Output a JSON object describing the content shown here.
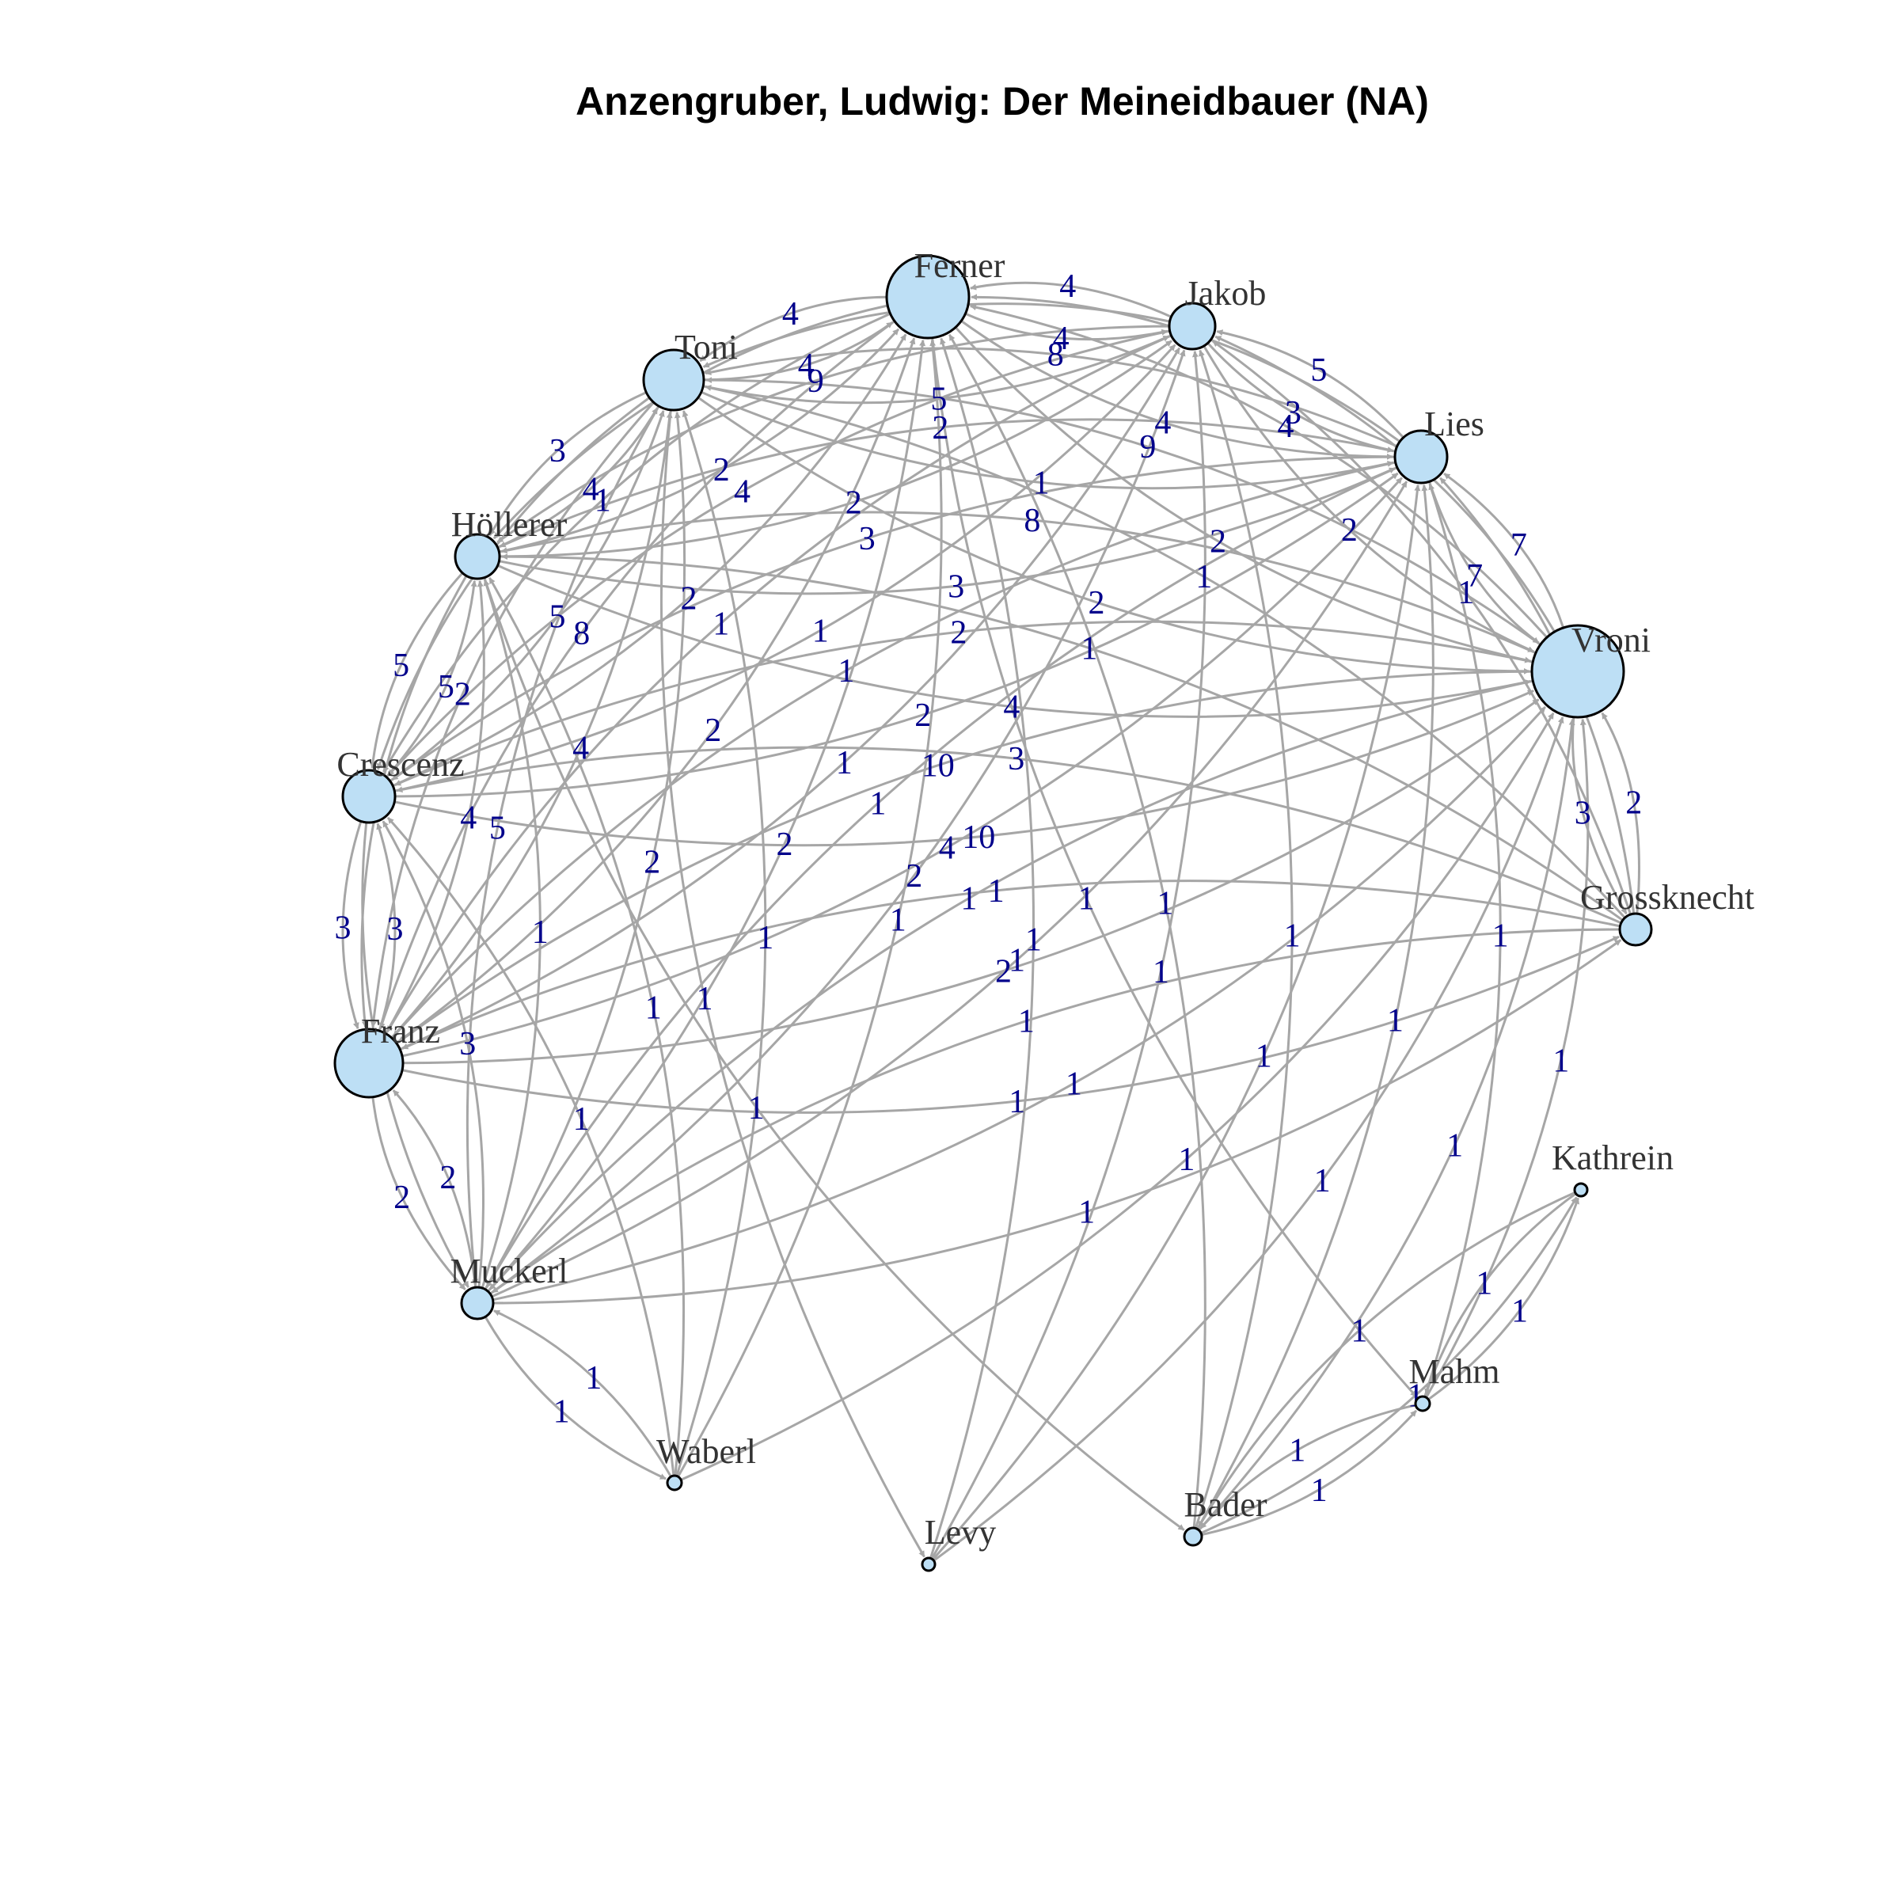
{
  "title": "Anzengruber, Ludwig: Der Meineidbauer (NA)",
  "colors": {
    "node_fill": "#bddff5",
    "node_stroke": "#000000",
    "edge": "#a6a6a6",
    "edge_label": "#00008b",
    "node_label": "#333333"
  },
  "nodes": [
    {
      "id": "Ferner",
      "label": "Ferner"
    },
    {
      "id": "Jakob",
      "label": "Jakob"
    },
    {
      "id": "Toni",
      "label": "Toni"
    },
    {
      "id": "Lies",
      "label": "Lies"
    },
    {
      "id": "Hoellerer",
      "label": "Höllerer"
    },
    {
      "id": "Vroni",
      "label": "Vroni"
    },
    {
      "id": "Crescenz",
      "label": "Crescenz"
    },
    {
      "id": "Grossknecht",
      "label": "Grossknecht"
    },
    {
      "id": "Franz",
      "label": "Franz"
    },
    {
      "id": "Kathrein",
      "label": "Kathrein"
    },
    {
      "id": "Muckerl",
      "label": "Muckerl"
    },
    {
      "id": "Mahm",
      "label": "Mahm"
    },
    {
      "id": "Waberl",
      "label": "Waberl"
    },
    {
      "id": "Bader",
      "label": "Bader"
    },
    {
      "id": "Levy",
      "label": "Levy"
    }
  ],
  "edges": [
    {
      "source": "Ferner",
      "target": "Jakob",
      "weight": "4"
    },
    {
      "source": "Jakob",
      "target": "Ferner",
      "weight": "4"
    },
    {
      "source": "Toni",
      "target": "Ferner",
      "weight": "4"
    },
    {
      "source": "Ferner",
      "target": "Toni",
      "weight": "4"
    },
    {
      "source": "Ferner",
      "target": "Lies",
      "weight": "4"
    },
    {
      "source": "Jakob",
      "target": "Lies",
      "weight": "3"
    },
    {
      "source": "Lies",
      "target": "Jakob",
      "weight": "5"
    },
    {
      "source": "Jakob",
      "target": "Vroni",
      "weight": "2"
    },
    {
      "source": "Lies",
      "target": "Vroni",
      "weight": "7"
    },
    {
      "source": "Vroni",
      "target": "Lies",
      "weight": "7"
    },
    {
      "source": "Vroni",
      "target": "Grossknecht",
      "weight": "3"
    },
    {
      "source": "Grossknecht",
      "target": "Vroni",
      "weight": "2"
    },
    {
      "source": "Toni",
      "target": "Hoellerer",
      "weight": "3"
    },
    {
      "source": "Hoellerer",
      "target": "Toni",
      "weight": "4"
    },
    {
      "source": "Hoellerer",
      "target": "Crescenz",
      "weight": "5"
    },
    {
      "source": "Crescenz",
      "target": "Hoellerer",
      "weight": "5"
    },
    {
      "source": "Crescenz",
      "target": "Franz",
      "weight": "3"
    },
    {
      "source": "Franz",
      "target": "Crescenz",
      "weight": "3"
    },
    {
      "source": "Franz",
      "target": "Muckerl",
      "weight": "2"
    },
    {
      "source": "Muckerl",
      "target": "Franz",
      "weight": "2"
    },
    {
      "source": "Muckerl",
      "target": "Waberl",
      "weight": "1"
    },
    {
      "source": "Waberl",
      "target": "Muckerl",
      "weight": "1"
    },
    {
      "source": "Bader",
      "target": "Mahm",
      "weight": "1"
    },
    {
      "source": "Mahm",
      "target": "Bader",
      "weight": "1"
    },
    {
      "source": "Mahm",
      "target": "Kathrein",
      "weight": "1"
    },
    {
      "source": "Kathrein",
      "target": "Mahm",
      "weight": "1"
    },
    {
      "source": "Bader",
      "target": "Kathrein",
      "weight": "1"
    },
    {
      "source": "Kathrein",
      "target": "Bader",
      "weight": "1"
    },
    {
      "source": "Toni",
      "target": "Lies",
      "weight": "1"
    },
    {
      "source": "Lies",
      "target": "Toni",
      "weight": "8"
    },
    {
      "source": "Toni",
      "target": "Vroni",
      "weight": "2"
    },
    {
      "source": "Vroni",
      "target": "Toni",
      "weight": "9"
    },
    {
      "source": "Hoellerer",
      "target": "Lies",
      "weight": "3"
    },
    {
      "source": "Lies",
      "target": "Hoellerer",
      "weight": "2"
    },
    {
      "source": "Hoellerer",
      "target": "Vroni",
      "weight": "4"
    },
    {
      "source": "Vroni",
      "target": "Hoellerer",
      "weight": "8"
    },
    {
      "source": "Crescenz",
      "target": "Vroni",
      "weight": "10"
    },
    {
      "source": "Vroni",
      "target": "Crescenz",
      "weight": "2"
    },
    {
      "source": "Crescenz",
      "target": "Lies",
      "weight": "2"
    },
    {
      "source": "Franz",
      "target": "Vroni",
      "weight": "2"
    },
    {
      "source": "Vroni",
      "target": "Franz",
      "weight": "10"
    },
    {
      "source": "Franz",
      "target": "Lies",
      "weight": "4"
    },
    {
      "source": "Franz",
      "target": "Toni",
      "weight": "4"
    },
    {
      "source": "Toni",
      "target": "Franz",
      "weight": "2"
    },
    {
      "source": "Franz",
      "target": "Ferner",
      "weight": "2"
    },
    {
      "source": "Ferner",
      "target": "Franz",
      "weight": "8"
    },
    {
      "source": "Crescenz",
      "target": "Ferner",
      "weight": "2"
    },
    {
      "source": "Ferner",
      "target": "Crescenz",
      "weight": "1"
    },
    {
      "source": "Crescenz",
      "target": "Toni",
      "weight": "5"
    },
    {
      "source": "Toni",
      "target": "Crescenz",
      "weight": "2"
    },
    {
      "source": "Hoellerer",
      "target": "Ferner",
      "weight": "2"
    },
    {
      "source": "Ferner",
      "target": "Hoellerer",
      "weight": "2"
    },
    {
      "source": "Hoellerer",
      "target": "Jakob",
      "weight": "2"
    },
    {
      "source": "Jakob",
      "target": "Hoellerer",
      "weight": "9"
    },
    {
      "source": "Crescenz",
      "target": "Jakob",
      "weight": "1"
    },
    {
      "source": "Grossknecht",
      "target": "Franz",
      "weight": "1"
    },
    {
      "source": "Franz",
      "target": "Grossknecht",
      "weight": "1"
    },
    {
      "source": "Grossknecht",
      "target": "Crescenz",
      "weight": "3"
    },
    {
      "source": "Grossknecht",
      "target": "Hoellerer",
      "weight": "1"
    },
    {
      "source": "Grossknecht",
      "target": "Toni",
      "weight": "1"
    },
    {
      "source": "Grossknecht",
      "target": "Muckerl",
      "weight": "1"
    },
    {
      "source": "Grossknecht",
      "target": "Lies",
      "weight": "1"
    },
    {
      "source": "Muckerl",
      "target": "Vroni",
      "weight": "1"
    },
    {
      "source": "Vroni",
      "target": "Muckerl",
      "weight": "1"
    },
    {
      "source": "Muckerl",
      "target": "Lies",
      "weight": "1"
    },
    {
      "source": "Muckerl",
      "target": "Ferner",
      "weight": "2"
    },
    {
      "source": "Muckerl",
      "target": "Toni",
      "weight": "2"
    },
    {
      "source": "Muckerl",
      "target": "Hoellerer",
      "weight": "1"
    },
    {
      "source": "Muckerl",
      "target": "Crescenz",
      "weight": "3"
    },
    {
      "source": "Muckerl",
      "target": "Jakob",
      "weight": "2"
    },
    {
      "source": "Waberl",
      "target": "Hoellerer",
      "weight": "1"
    },
    {
      "source": "Waberl",
      "target": "Toni",
      "weight": "1"
    },
    {
      "source": "Waberl",
      "target": "Crescenz",
      "weight": "1"
    },
    {
      "source": "Waberl",
      "target": "Vroni",
      "weight": "1"
    },
    {
      "source": "Waberl",
      "target": "Ferner",
      "weight": "1"
    },
    {
      "source": "Levy",
      "target": "Ferner",
      "weight": "1"
    },
    {
      "source": "Levy",
      "target": "Jakob",
      "weight": "1"
    },
    {
      "source": "Levy",
      "target": "Vroni",
      "weight": "1"
    },
    {
      "source": "Levy",
      "target": "Lies",
      "weight": "1"
    },
    {
      "source": "Toni",
      "target": "Levy",
      "weight": "1"
    },
    {
      "source": "Bader",
      "target": "Jakob",
      "weight": "1"
    },
    {
      "source": "Bader",
      "target": "Lies",
      "weight": "1"
    },
    {
      "source": "Bader",
      "target": "Vroni",
      "weight": "1"
    },
    {
      "source": "Bader",
      "target": "Ferner",
      "weight": "1"
    },
    {
      "source": "Hoellerer",
      "target": "Bader",
      "weight": "1"
    },
    {
      "source": "Mahm",
      "target": "Lies",
      "weight": "1"
    },
    {
      "source": "Mahm",
      "target": "Vroni",
      "weight": "1"
    },
    {
      "source": "Ferner",
      "target": "Mahm",
      "weight": "1"
    },
    {
      "source": "Ferner",
      "target": "Vroni",
      "weight": "2"
    },
    {
      "source": "Jakob",
      "target": "Toni",
      "weight": "4"
    },
    {
      "source": "Toni",
      "target": "Jakob",
      "weight": "5"
    },
    {
      "source": "Lies",
      "target": "Ferner",
      "weight": "5"
    },
    {
      "source": "Franz",
      "target": "Hoellerer",
      "weight": "4"
    },
    {
      "source": "Hoellerer",
      "target": "Franz",
      "weight": "2"
    },
    {
      "source": "Jakob",
      "target": "Franz",
      "weight": "1"
    },
    {
      "source": "Jakob",
      "target": "Crescenz",
      "weight": "4"
    },
    {
      "source": "Lies",
      "target": "Crescenz",
      "weight": "3"
    },
    {
      "source": "Lies",
      "target": "Muckerl",
      "weight": "1"
    },
    {
      "source": "Lies",
      "target": "Franz",
      "weight": "1"
    },
    {
      "source": "Vroni",
      "target": "Jakob",
      "weight": "2"
    },
    {
      "source": "Vroni",
      "target": "Ferner",
      "weight": "4"
    },
    {
      "source": "Toni",
      "target": "Muckerl",
      "weight": "5"
    },
    {
      "source": "Crescenz",
      "target": "Muckerl",
      "weight": "1"
    },
    {
      "source": "Franz",
      "target": "Jakob",
      "weight": "1"
    },
    {
      "source": "Grossknecht",
      "target": "Jakob",
      "weight": "1"
    },
    {
      "source": "Muckerl",
      "target": "Grossknecht",
      "weight": "1"
    }
  ]
}
